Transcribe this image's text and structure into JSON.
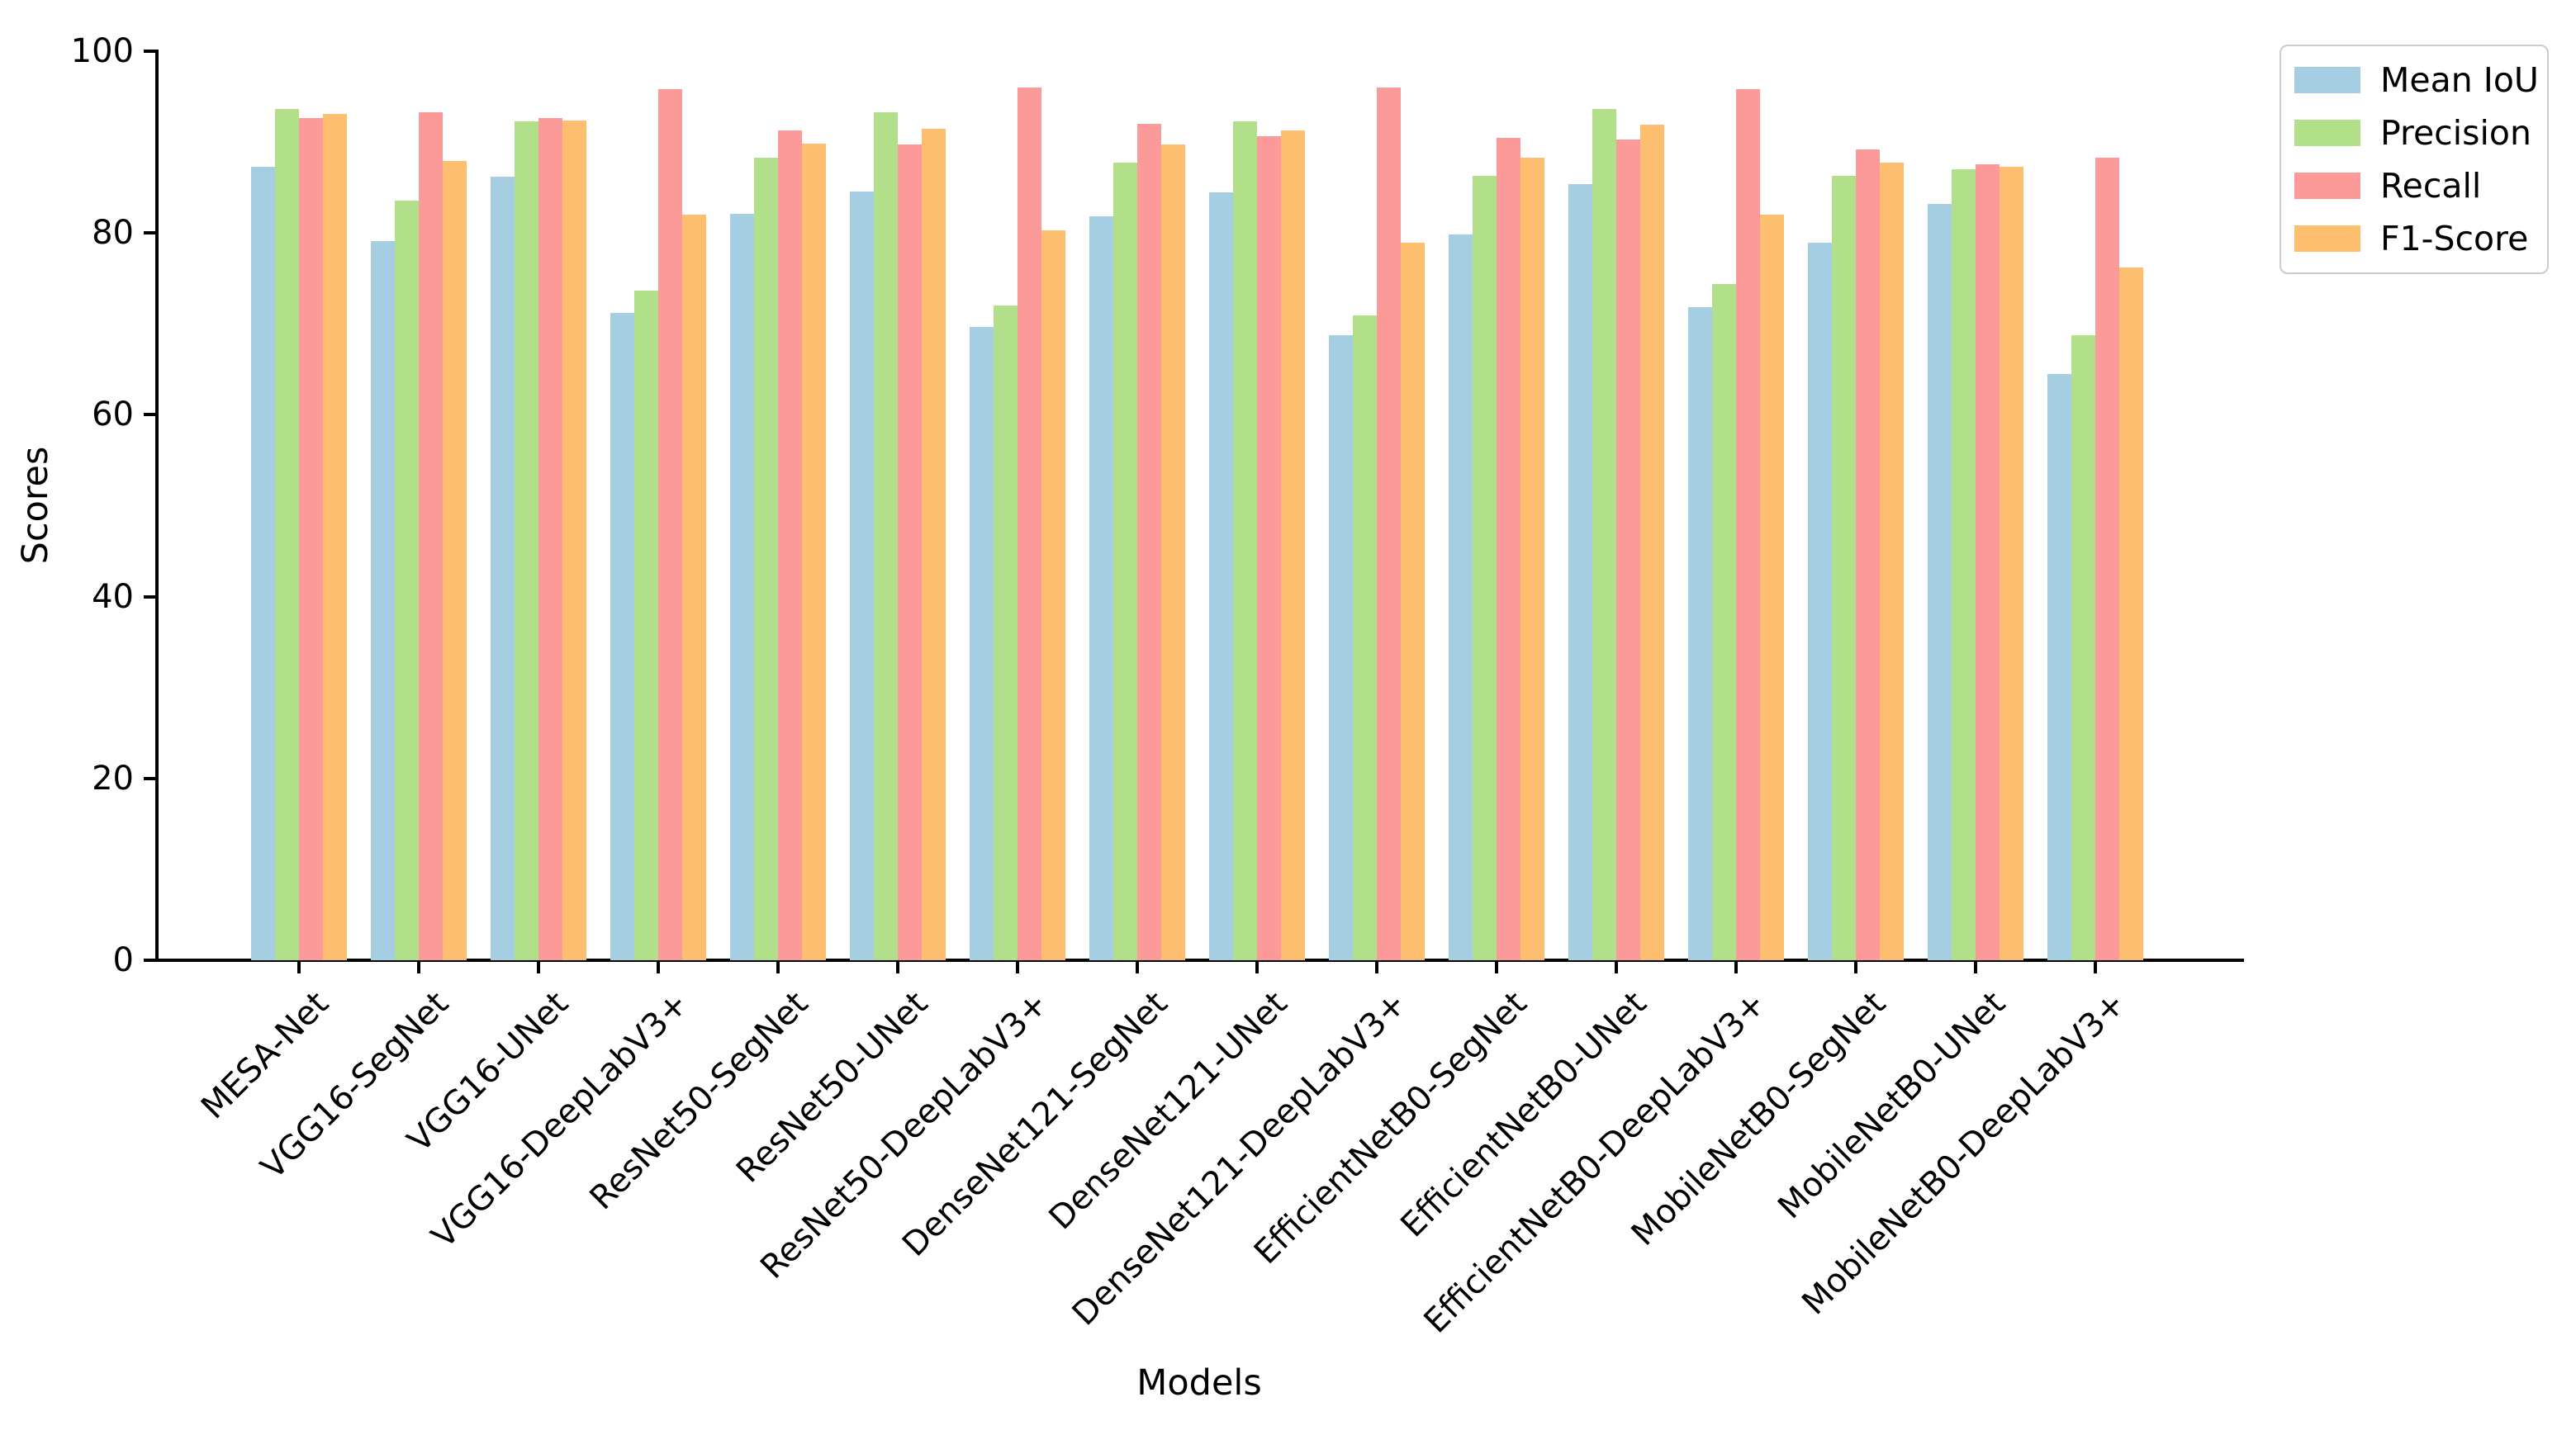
{
  "figure": {
    "background": "#ffffff",
    "text_color": "#000000",
    "axis_color": "#000000"
  },
  "chart_data": {
    "type": "bar",
    "title": "",
    "xlabel": "Models",
    "ylabel": "Scores",
    "ylim": [
      0,
      100
    ],
    "yticks": [
      0,
      20,
      40,
      60,
      80,
      100
    ],
    "grid": false,
    "legend_position": "upper-right-outside",
    "categories": [
      "MESA-Net",
      "VGG16-SegNet",
      "VGG16-UNet",
      "VGG16-DeepLabV3+",
      "ResNet50-SegNet",
      "ResNet50-UNet",
      "ResNet50-DeepLabV3+",
      "DenseNet121-SegNet",
      "DenseNet121-UNet",
      "DenseNet121-DeepLabV3+",
      "EfficientNetB0-SegNet",
      "EfficientNetB0-UNet",
      "EfficientNetB0-DeepLabV3+",
      "MobileNetB0-SegNet",
      "MobileNetB0-UNet",
      "MobileNetB0-DeepLabV3+"
    ],
    "series": [
      {
        "name": "Mean IoU",
        "color": "#a6cee3",
        "values": [
          87.3,
          79.1,
          86.2,
          71.2,
          82.1,
          84.6,
          69.7,
          81.8,
          84.5,
          68.8,
          79.8,
          85.4,
          71.8,
          78.9,
          83.2,
          64.5
        ]
      },
      {
        "name": "Precision",
        "color": "#b2df8a",
        "values": [
          93.6,
          83.6,
          92.3,
          73.7,
          88.3,
          93.3,
          72.0,
          87.7,
          92.3,
          70.9,
          86.3,
          93.6,
          74.4,
          86.3,
          87.0,
          68.8
        ]
      },
      {
        "name": "Recall",
        "color": "#fb9a99",
        "values": [
          92.6,
          93.3,
          92.6,
          95.8,
          91.3,
          89.7,
          96.0,
          92.0,
          90.6,
          96.0,
          90.5,
          90.3,
          95.8,
          89.2,
          87.6,
          88.3
        ]
      },
      {
        "name": "F1-Score",
        "color": "#fdbf6f",
        "values": [
          93.1,
          87.9,
          92.4,
          82.0,
          89.8,
          91.5,
          80.3,
          89.7,
          91.3,
          78.9,
          88.3,
          91.9,
          82.0,
          87.7,
          87.3,
          76.2
        ]
      }
    ]
  }
}
